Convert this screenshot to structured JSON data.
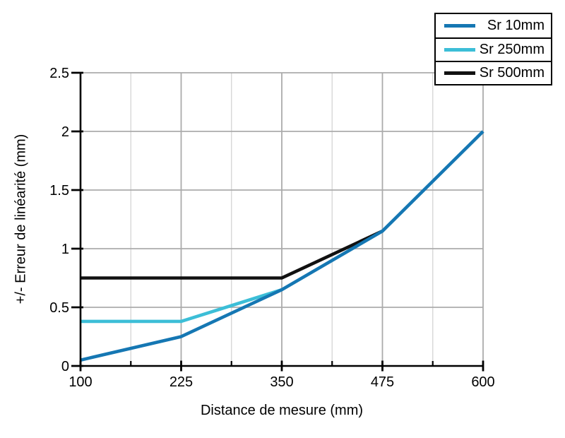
{
  "chart_data": {
    "type": "line",
    "title": "",
    "xlabel": "Distance de mesure (mm)",
    "ylabel": "+/- Erreur de linéarité (mm)",
    "xlim": [
      100,
      600
    ],
    "ylim": [
      0,
      2.5
    ],
    "xticks": [
      100,
      225,
      350,
      475,
      600
    ],
    "xtick_labels": [
      "100",
      "225",
      "350",
      "475",
      "600"
    ],
    "minor_xticks": [
      162.5,
      287.5,
      412.5,
      537.5
    ],
    "yticks": [
      0,
      0.5,
      1,
      1.5,
      2,
      2.5
    ],
    "ytick_labels": [
      "0",
      "0.5",
      "1",
      "1.5",
      "2",
      "2.5"
    ],
    "grid": true,
    "legend_position": "top-right",
    "series": [
      {
        "name": "Sr 10mm",
        "color": "#1577b3",
        "x": [
          100,
          225,
          350,
          475,
          600
        ],
        "y": [
          0.05,
          0.25,
          0.65,
          1.15,
          2.0
        ]
      },
      {
        "name": "Sr 250mm",
        "color": "#3cbed7",
        "x": [
          100,
          225,
          350
        ],
        "y": [
          0.38,
          0.38,
          0.65
        ]
      },
      {
        "name": "Sr 500mm",
        "color": "#111111",
        "x": [
          100,
          350,
          475
        ],
        "y": [
          0.75,
          0.75,
          1.15
        ]
      }
    ],
    "colors": {
      "axis": "#000000",
      "major_grid": "#ababab",
      "minor_grid": "#d7d7d7",
      "background": "#ffffff"
    }
  }
}
